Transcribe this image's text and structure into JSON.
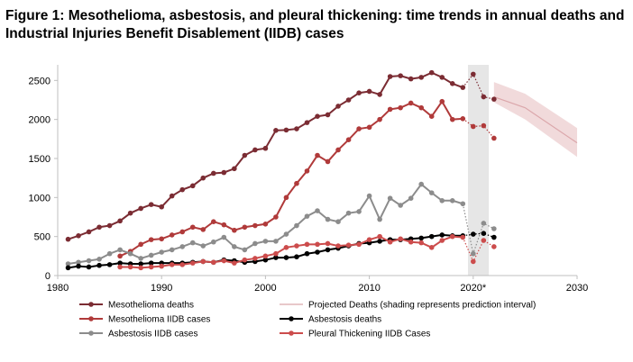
{
  "chart_data": {
    "type": "line",
    "title": "Figure 1: Mesothelioma, asbestosis, and pleural thickening: time trends in annual deaths and Industrial Injuries Benefit Disablement (IIDB) cases",
    "xlabel": "",
    "ylabel": "",
    "xlim": [
      1980,
      2030
    ],
    "ylim": [
      0,
      2700
    ],
    "x_ticks": [
      1980,
      1990,
      2000,
      2010,
      2020,
      2030
    ],
    "x_tick_labels": [
      "1980",
      "1990",
      "2000",
      "2010",
      "2020*",
      "2030"
    ],
    "y_ticks": [
      0,
      500,
      1000,
      1500,
      2000,
      2500
    ],
    "grid": false,
    "legend_position": "bottom",
    "shaded_period": [
      2019.5,
      2021.5
    ],
    "series": [
      {
        "name": "Mesothelioma deaths",
        "color": "#7b2c33",
        "marker": true,
        "x": [
          1981,
          1982,
          1983,
          1984,
          1985,
          1986,
          1987,
          1988,
          1989,
          1990,
          1991,
          1992,
          1993,
          1994,
          1995,
          1996,
          1997,
          1998,
          1999,
          2000,
          2001,
          2002,
          2003,
          2004,
          2005,
          2006,
          2007,
          2008,
          2009,
          2010,
          2011,
          2012,
          2013,
          2014,
          2015,
          2016,
          2017,
          2018,
          2019
        ],
        "values": [
          465,
          510,
          560,
          620,
          640,
          700,
          800,
          860,
          910,
          880,
          1020,
          1100,
          1150,
          1250,
          1310,
          1320,
          1370,
          1540,
          1610,
          1630,
          1860,
          1865,
          1880,
          1960,
          2040,
          2060,
          2170,
          2250,
          2340,
          2360,
          2320,
          2550,
          2560,
          2520,
          2540,
          2600,
          2540,
          2460,
          2410
        ],
        "projected_x": [
          2019,
          2020,
          2021,
          2022
        ],
        "projected_values": [
          2410,
          2580,
          2290,
          2260
        ],
        "projected_dotted": true
      },
      {
        "name": "Mesothelioma IIDB cases",
        "color": "#b03a3a",
        "marker": true,
        "x": [
          1986,
          1987,
          1988,
          1989,
          1990,
          1991,
          1992,
          1993,
          1994,
          1995,
          1996,
          1997,
          1998,
          1999,
          2000,
          2001,
          2002,
          2003,
          2004,
          2005,
          2006,
          2007,
          2008,
          2009,
          2010,
          2011,
          2012,
          2013,
          2014,
          2015,
          2016,
          2017,
          2018,
          2019
        ],
        "values": [
          250,
          310,
          400,
          460,
          470,
          520,
          560,
          620,
          590,
          690,
          650,
          580,
          620,
          640,
          660,
          750,
          1000,
          1180,
          1340,
          1540,
          1460,
          1610,
          1740,
          1880,
          1900,
          2000,
          2130,
          2150,
          2210,
          2150,
          2040,
          2230,
          2000,
          2010
        ],
        "projected_x": [
          2019,
          2020,
          2021,
          2022
        ],
        "projected_values": [
          2010,
          1910,
          1920,
          1760
        ],
        "projected_dotted": true
      },
      {
        "name": "Asbestosis IIDB cases",
        "color": "#8c8c8c",
        "marker": true,
        "x": [
          1981,
          1982,
          1983,
          1984,
          1985,
          1986,
          1987,
          1988,
          1989,
          1990,
          1991,
          1992,
          1993,
          1994,
          1995,
          1996,
          1997,
          1998,
          1999,
          2000,
          2001,
          2002,
          2003,
          2004,
          2005,
          2006,
          2007,
          2008,
          2009,
          2010,
          2011,
          2012,
          2013,
          2014,
          2015,
          2016,
          2017,
          2018,
          2019
        ],
        "values": [
          150,
          170,
          190,
          210,
          280,
          330,
          280,
          220,
          260,
          300,
          330,
          370,
          420,
          380,
          430,
          490,
          370,
          330,
          410,
          440,
          440,
          530,
          640,
          760,
          830,
          720,
          690,
          800,
          820,
          1020,
          720,
          990,
          900,
          990,
          1170,
          1060,
          960,
          960,
          920
        ],
        "projected_x": [
          2019,
          2020,
          2021,
          2022
        ],
        "projected_values": [
          920,
          280,
          670,
          600
        ],
        "projected_dotted": true
      },
      {
        "name": "Asbestosis deaths",
        "color": "#000000",
        "marker": true,
        "x": [
          1981,
          1982,
          1983,
          1984,
          1985,
          1986,
          1987,
          1988,
          1989,
          1990,
          1991,
          1992,
          1993,
          1994,
          1995,
          1996,
          1997,
          1998,
          1999,
          2000,
          2001,
          2002,
          2003,
          2004,
          2005,
          2006,
          2007,
          2008,
          2009,
          2010,
          2011,
          2012,
          2013,
          2014,
          2015,
          2016,
          2017,
          2018,
          2019
        ],
        "values": [
          100,
          120,
          110,
          130,
          140,
          160,
          150,
          150,
          160,
          160,
          160,
          160,
          170,
          180,
          170,
          200,
          190,
          170,
          180,
          200,
          230,
          230,
          240,
          280,
          300,
          330,
          350,
          380,
          410,
          420,
          440,
          460,
          460,
          470,
          480,
          500,
          520,
          510,
          510
        ],
        "projected_x": [
          2019,
          2020,
          2021,
          2022
        ],
        "projected_values": [
          510,
          530,
          540,
          490
        ],
        "projected_dotted": true
      },
      {
        "name": "Pleural Thickening IIDB Cases",
        "color": "#cc4c4c",
        "marker": true,
        "x": [
          1986,
          1987,
          1988,
          1989,
          1990,
          1991,
          1992,
          1993,
          1994,
          1995,
          1996,
          1997,
          1998,
          1999,
          2000,
          2001,
          2002,
          2003,
          2004,
          2005,
          2006,
          2007,
          2008,
          2009,
          2010,
          2011,
          2012,
          2013,
          2014,
          2015,
          2016,
          2017,
          2018,
          2019
        ],
        "values": [
          110,
          110,
          100,
          110,
          120,
          140,
          140,
          160,
          180,
          170,
          190,
          160,
          200,
          220,
          250,
          280,
          360,
          380,
          400,
          400,
          410,
          380,
          390,
          400,
          460,
          500,
          430,
          470,
          430,
          420,
          360,
          450,
          500,
          490
        ],
        "projected_x": [
          2019,
          2020,
          2021,
          2022
        ],
        "projected_values": [
          490,
          180,
          450,
          370
        ],
        "projected_dotted": true
      },
      {
        "name": "Projected Deaths (shading represents prediction interval)",
        "color": "#dba7ab",
        "band_color": "#efd3d5",
        "marker": false,
        "x": [
          2022,
          2025,
          2030
        ],
        "values": [
          2290,
          2150,
          1700
        ],
        "lower": [
          2220,
          2000,
          1520
        ],
        "upper": [
          2480,
          2330,
          1890
        ]
      }
    ],
    "legend": [
      "Mesothelioma deaths",
      "Projected Deaths (shading represents prediction interval)",
      "Mesothelioma IIDB cases",
      "Asbestosis deaths",
      "Asbestosis IIDB cases",
      "Pleural Thickening IIDB Cases"
    ]
  }
}
